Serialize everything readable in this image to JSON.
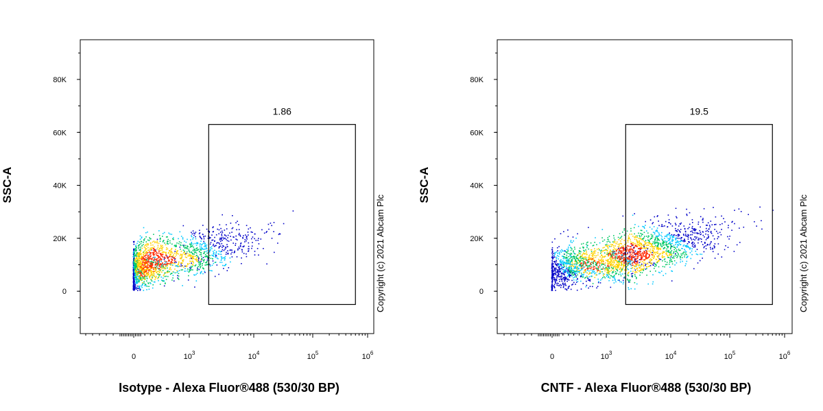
{
  "copyright": "Copyright (c) 2021 Abcam Plc",
  "colors": {
    "low_density": "#0000c8",
    "mid_density": "#00c8ff",
    "high_density": "#ff2800",
    "gate": "#000000"
  },
  "chart_data": [
    {
      "type": "scatter",
      "title": "",
      "xlabel": "Isotype - Alexa Fluor®488 (530/30 BP)",
      "ylabel": "SSC-A",
      "x_scale": "biexponential",
      "x_ticks": [
        "0",
        "10^3",
        "10^4",
        "10^5",
        "10^6"
      ],
      "y_ticks": [
        "0",
        "20K",
        "40K",
        "60K",
        "80K"
      ],
      "ylim": [
        -16000,
        95000
      ],
      "gate": {
        "label": "1.86",
        "x_range": [
          2000,
          600000
        ],
        "y_range": [
          -5000,
          63000
        ]
      },
      "clusters": [
        {
          "x_center": 300,
          "y_center": 8000,
          "x_spread": 0.35,
          "y_spread": 6000,
          "color": "high_density"
        },
        {
          "x_center": 500,
          "y_center": 12000,
          "x_spread": 0.6,
          "y_spread": 9000,
          "color": "low_density"
        }
      ]
    },
    {
      "type": "scatter",
      "title": "",
      "xlabel": "CNTF - Alexa Fluor®488 (530/30 BP)",
      "ylabel": "SSC-A",
      "x_scale": "biexponential",
      "x_ticks": [
        "0",
        "10^3",
        "10^4",
        "10^5",
        "10^6"
      ],
      "y_ticks": [
        "0",
        "20K",
        "40K",
        "60K",
        "80K"
      ],
      "ylim": [
        -16000,
        95000
      ],
      "gate": {
        "label": "19.5",
        "x_range": [
          2000,
          600000
        ],
        "y_range": [
          -5000,
          63000
        ]
      },
      "clusters": [
        {
          "x_center": 900,
          "y_center": 10000,
          "x_spread": 0.35,
          "y_spread": 6000,
          "color": "high_density"
        },
        {
          "x_center": 2500,
          "y_center": 14000,
          "x_spread": 0.7,
          "y_spread": 9000,
          "color": "low_density"
        }
      ]
    }
  ]
}
